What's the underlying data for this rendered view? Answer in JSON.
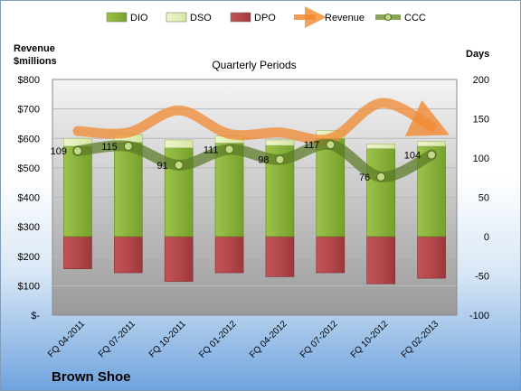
{
  "chart_data": {
    "type": "bar",
    "title": "Quarterly Periods",
    "company": "Brown Shoe",
    "left_axis": {
      "label_line1": "Revenue",
      "label_line2": "$millions",
      "ticks": [
        "$-",
        "$100",
        "$200",
        "$300",
        "$400",
        "$500",
        "$600",
        "$700",
        "$800"
      ],
      "ylim": [
        0,
        800
      ]
    },
    "right_axis": {
      "label": "Days",
      "ticks": [
        "-100",
        "-50",
        "0",
        "50",
        "100",
        "150",
        "200"
      ],
      "ylim": [
        -100,
        200
      ]
    },
    "categories": [
      "FQ 04-2011",
      "FQ 07-2011",
      "FQ 10-2011",
      "FQ 01-2012",
      "FQ 04-2012",
      "FQ 07-2012",
      "FQ 10-2012",
      "FQ 02-2013"
    ],
    "legend": [
      "DIO",
      "DSO",
      "DPO",
      "Revenue",
      "CCC"
    ],
    "series": [
      {
        "name": "DIO",
        "axis": "right",
        "values": [
          115,
          120,
          113,
          119,
          116,
          125,
          112,
          115
        ]
      },
      {
        "name": "DSO",
        "axis": "right",
        "values": [
          10,
          10,
          10,
          9,
          7,
          10,
          6,
          6
        ]
      },
      {
        "name": "DPO",
        "axis": "right",
        "values": [
          -41,
          -46,
          -57,
          -46,
          -51,
          -46,
          -60,
          -53
        ]
      },
      {
        "name": "Revenue",
        "axis": "left",
        "values": [
          625,
          620,
          695,
          615,
          620,
          600,
          720,
          640
        ]
      },
      {
        "name": "CCC",
        "axis": "right",
        "values": [
          109,
          115,
          91,
          111,
          98,
          117,
          76,
          104
        ]
      }
    ],
    "ccc_labels": [
      "109",
      "115",
      "91",
      "111",
      "98",
      "117",
      "76",
      "104"
    ],
    "colors": {
      "DIO": "#8bb13a",
      "DSO": "#e2eeb8",
      "DPO": "#b4474b",
      "Revenue": "#f08a32",
      "CCC": "#6a8e2e"
    },
    "legend_placement": "top"
  }
}
